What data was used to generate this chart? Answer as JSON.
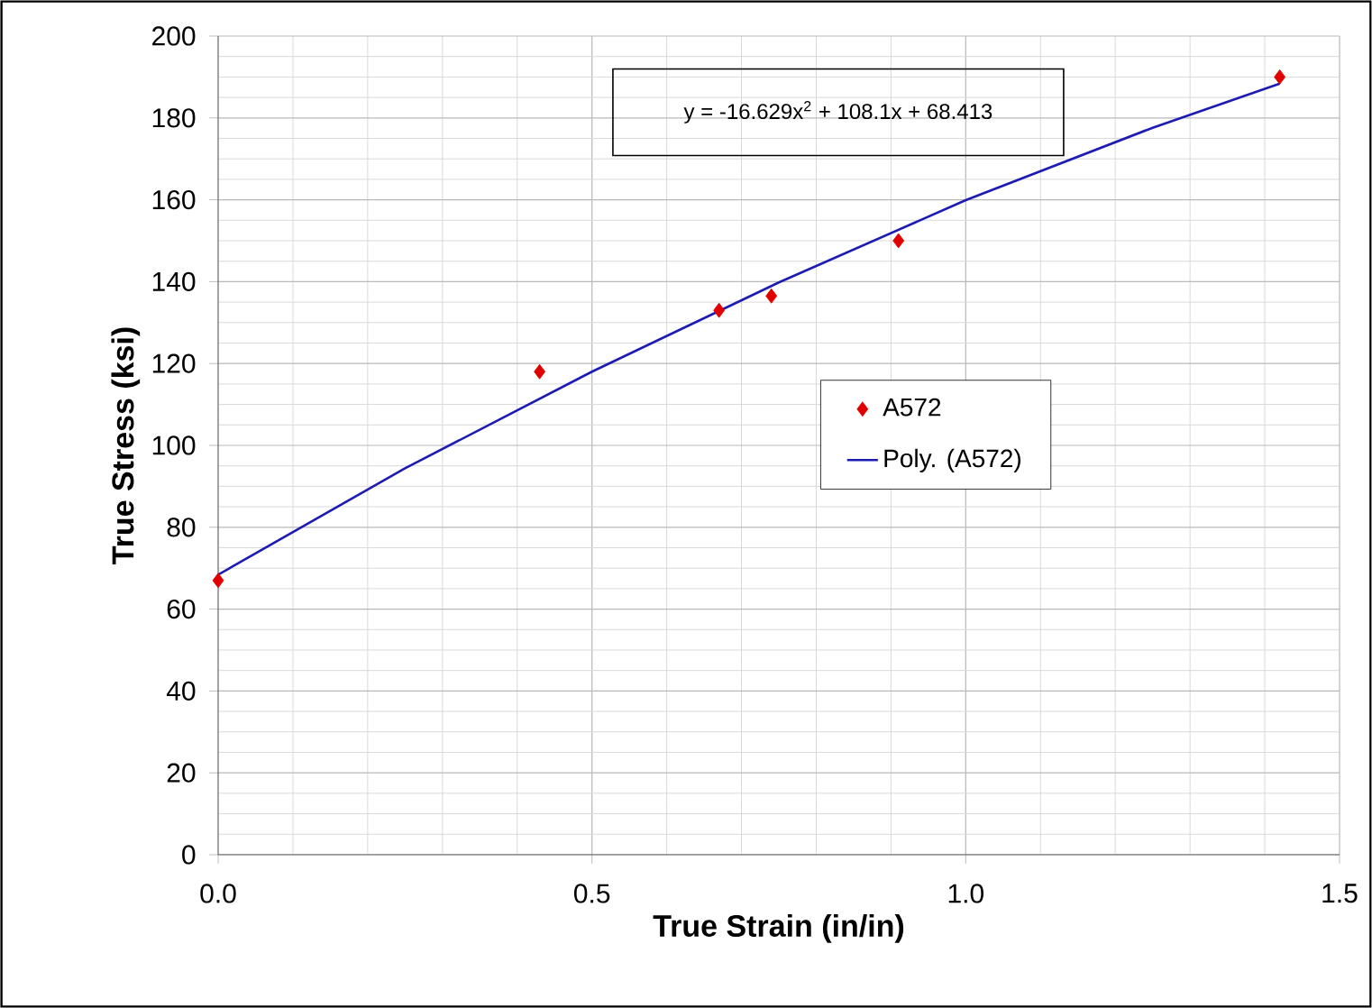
{
  "chart_data": {
    "type": "scatter",
    "xlabel": "True Strain (in/in)",
    "ylabel": "True Stress (ksi)",
    "annotations": [
      "y = -16.629x$^{2}$ + 108.1x + 68.413"
    ],
    "xlim": [
      0,
      1.5
    ],
    "ylim": [
      0,
      200
    ],
    "xticks": [
      {
        "value": 0,
        "label": "0.0"
      },
      {
        "value": 0.5,
        "label": "0.5"
      },
      {
        "value": 1,
        "label": "1.0"
      },
      {
        "value": 1.5,
        "label": "1.5"
      }
    ],
    "yticks": [
      0,
      20,
      40,
      60,
      80,
      100,
      120,
      140,
      160,
      180,
      200
    ],
    "grid": true,
    "legend": "center",
    "series": [
      {
        "name": "A572",
        "marker": "diamond",
        "color": "#e00000",
        "x": [
          0,
          0.43,
          0.67,
          0.74,
          0.91,
          1.42
        ],
        "values": [
          67,
          118,
          133,
          136.5,
          150,
          190
        ]
      },
      {
        "name": "Poly. (A572)",
        "type": "line",
        "marker": "none",
        "line_style": "solid",
        "color": "#1c1cb4",
        "x": [
          0,
          0.25,
          0.5,
          0.75,
          1.0,
          1.25,
          1.42
        ],
        "values": [
          68.4,
          94.4,
          118,
          139.8,
          159.9,
          177.6,
          188.4
        ]
      }
    ]
  }
}
